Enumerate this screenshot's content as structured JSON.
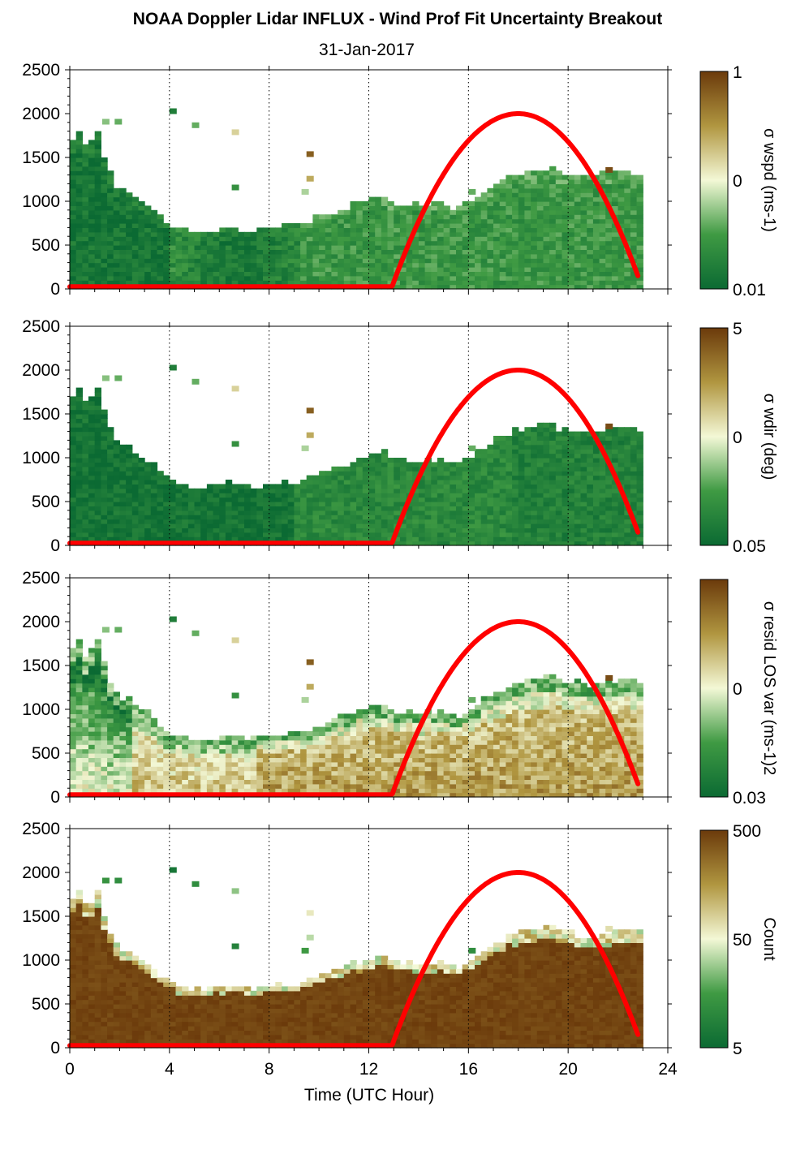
{
  "figure": {
    "title": "NOAA Doppler Lidar INFLUX - Wind Prof Fit Uncertainty Breakout",
    "subtitle": "31-Jan-2017",
    "xlabel": "Time (UTC Hour)"
  },
  "colors": {
    "low": "#0b6a33",
    "mid": "#f3f8d6",
    "high": "#6b3a0b",
    "curve": "#ff0000",
    "frame": "#000000"
  },
  "chart_data": [
    {
      "type": "heatmap",
      "panel": 1,
      "cbar_label": "σ wspd (ms-1)",
      "cbar_ticks": [
        "1",
        "0",
        "0.01"
      ],
      "xticks": [
        "0",
        "4",
        "8",
        "12",
        "16",
        "20",
        "24"
      ],
      "yticks": [
        "0",
        "500",
        "1000",
        "1500",
        "2000",
        "2500"
      ],
      "xlim": [
        0,
        24
      ],
      "ylim": [
        0,
        2500
      ],
      "field": "wspd"
    },
    {
      "type": "heatmap",
      "panel": 2,
      "cbar_label": "σ wdir (deg)",
      "cbar_ticks": [
        "5",
        "0",
        "0.05"
      ],
      "xticks": [
        "0",
        "4",
        "8",
        "12",
        "16",
        "20",
        "24"
      ],
      "yticks": [
        "0",
        "500",
        "1000",
        "1500",
        "2000",
        "2500"
      ],
      "xlim": [
        0,
        24
      ],
      "ylim": [
        0,
        2500
      ],
      "field": "wdir"
    },
    {
      "type": "heatmap",
      "panel": 3,
      "cbar_label": "σ resid LOS var (ms-1)2",
      "cbar_ticks": [
        "",
        "0",
        "0.03"
      ],
      "xticks": [
        "0",
        "4",
        "8",
        "12",
        "16",
        "20",
        "24"
      ],
      "yticks": [
        "0",
        "500",
        "1000",
        "1500",
        "2000",
        "2500"
      ],
      "xlim": [
        0,
        24
      ],
      "ylim": [
        0,
        2500
      ],
      "field": "resid"
    },
    {
      "type": "heatmap",
      "panel": 4,
      "cbar_label": "Count",
      "cbar_ticks": [
        "500",
        "50",
        "5"
      ],
      "xticks": [
        "0",
        "4",
        "8",
        "12",
        "16",
        "20",
        "24"
      ],
      "yticks": [
        "0",
        "500",
        "1000",
        "1500",
        "2000",
        "2500"
      ],
      "xlim": [
        0,
        24
      ],
      "ylim": [
        0,
        2500
      ],
      "field": "count"
    }
  ],
  "data_extent": {
    "t_start": 0.0,
    "t_end": 22.8,
    "top_profile": [
      [
        0.0,
        1580
      ],
      [
        0.3,
        1850
      ],
      [
        0.7,
        1550
      ],
      [
        1.1,
        1800
      ],
      [
        1.5,
        1350
      ],
      [
        2.0,
        1100
      ],
      [
        2.5,
        1080
      ],
      [
        3.0,
        950
      ],
      [
        3.5,
        850
      ],
      [
        4.0,
        720
      ],
      [
        4.5,
        680
      ],
      [
        5.0,
        620
      ],
      [
        5.5,
        640
      ],
      [
        6.0,
        660
      ],
      [
        6.5,
        700
      ],
      [
        7.0,
        640
      ],
      [
        7.5,
        660
      ],
      [
        8.0,
        680
      ],
      [
        8.5,
        700
      ],
      [
        9.0,
        700
      ],
      [
        9.5,
        720
      ],
      [
        10.0,
        800
      ],
      [
        10.5,
        850
      ],
      [
        11.0,
        900
      ],
      [
        11.5,
        950
      ],
      [
        12.0,
        1000
      ],
      [
        12.5,
        1050
      ],
      [
        13.0,
        950
      ],
      [
        13.5,
        960
      ],
      [
        14.0,
        960
      ],
      [
        14.5,
        950
      ],
      [
        15.0,
        940
      ],
      [
        15.5,
        900
      ],
      [
        16.0,
        980
      ],
      [
        16.5,
        1050
      ],
      [
        17.0,
        1150
      ],
      [
        17.5,
        1250
      ],
      [
        18.0,
        1280
      ],
      [
        18.5,
        1320
      ],
      [
        19.0,
        1350
      ],
      [
        19.5,
        1330
      ],
      [
        20.0,
        1300
      ],
      [
        20.5,
        1270
      ],
      [
        21.0,
        1260
      ],
      [
        21.5,
        1280
      ],
      [
        22.0,
        1300
      ],
      [
        22.5,
        1320
      ],
      [
        22.8,
        1300
      ]
    ],
    "sun_curve": {
      "rise_hour": 12.9,
      "peak_hour": 18.0,
      "peak_value": 2000,
      "end_hour": 22.8,
      "end_value": 150,
      "night_value": 25
    }
  }
}
